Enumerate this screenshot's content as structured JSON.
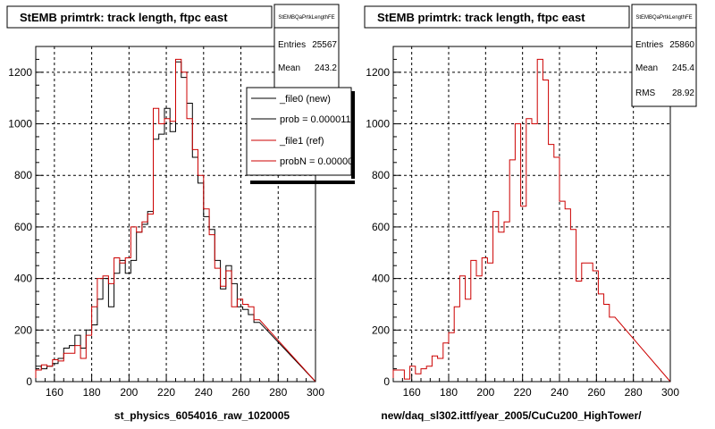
{
  "panels": [
    {
      "title": "StEMB primtrk: track length, ftpc east",
      "stats": {
        "name": "StEMBQaPrtkLengthFE",
        "rows": [
          {
            "label": "Entries",
            "value": "25567"
          },
          {
            "label": "Mean",
            "value": "243.2"
          }
        ]
      },
      "legend": [
        {
          "label": "_file0 (new)",
          "color": "#000000"
        },
        {
          "label": "prob = 0.000011",
          "color": "#000000"
        },
        {
          "label": "_file1 (ref)",
          "color": "#cc0000"
        },
        {
          "label": "probN = 0.00000",
          "color": "#cc0000"
        }
      ],
      "xlabel": "st_physics_6054016_raw_1020005"
    },
    {
      "title": "StEMB primtrk: track length, ftpc east",
      "stats": {
        "name": "StEMBQaPrtkLengthFE",
        "rows": [
          {
            "label": "Entries",
            "value": "25860"
          },
          {
            "label": "Mean",
            "value": "245.4"
          },
          {
            "label": "RMS",
            "value": "28.92"
          }
        ]
      },
      "legend": [],
      "xlabel": "new/daq_sl302.ittf/year_2005/CuCu200_HighTower/"
    }
  ],
  "chart_data": [
    {
      "type": "line",
      "step": true,
      "title": "StEMB primtrk: track length, ftpc east",
      "xlabel": "st_physics_6054016_raw_1020005",
      "ylabel": "",
      "xlim": [
        150,
        300
      ],
      "ylim": [
        0,
        1300
      ],
      "xticks": [
        160,
        180,
        200,
        220,
        240,
        260,
        280,
        300
      ],
      "yticks": [
        0,
        200,
        400,
        600,
        800,
        1000,
        1200
      ],
      "grid": true,
      "bin_start": 150,
      "bin_width": 3,
      "series": [
        {
          "name": "_file0 (new)",
          "color": "#000000",
          "values": [
            60,
            50,
            60,
            70,
            90,
            130,
            140,
            180,
            130,
            200,
            220,
            320,
            400,
            290,
            420,
            470,
            420,
            470,
            580,
            610,
            660,
            940,
            960,
            1060,
            970,
            1240,
            1180,
            1080,
            870,
            770,
            640,
            590,
            470,
            360,
            450,
            380,
            290,
            280,
            260,
            230
          ]
        },
        {
          "name": "_file1 (ref)",
          "color": "#cc0000",
          "values": [
            45,
            65,
            60,
            85,
            80,
            110,
            110,
            140,
            90,
            180,
            290,
            400,
            410,
            380,
            480,
            460,
            480,
            600,
            580,
            620,
            650,
            1060,
            1000,
            1020,
            1010,
            1250,
            1200,
            1020,
            900,
            800,
            670,
            570,
            440,
            370,
            430,
            290,
            320,
            300,
            290,
            240
          ]
        }
      ]
    },
    {
      "type": "line",
      "step": true,
      "title": "StEMB primtrk: track length, ftpc east",
      "xlabel": "new/daq_sl302.ittf/year_2005/CuCu200_HighTower/",
      "ylabel": "",
      "xlim": [
        150,
        300
      ],
      "ylim": [
        0,
        1300
      ],
      "xticks": [
        160,
        180,
        200,
        220,
        240,
        260,
        280,
        300
      ],
      "yticks": [
        0,
        200,
        400,
        600,
        800,
        1000,
        1200
      ],
      "grid": true,
      "bin_start": 150,
      "bin_width": 3,
      "series": [
        {
          "name": "",
          "color": "#cc0000",
          "values": [
            45,
            45,
            10,
            60,
            30,
            50,
            60,
            100,
            90,
            150,
            190,
            290,
            410,
            320,
            470,
            410,
            480,
            460,
            660,
            580,
            620,
            860,
            1000,
            680,
            1020,
            1000,
            1250,
            1170,
            920,
            870,
            700,
            670,
            590,
            390,
            460,
            460,
            430,
            340,
            300,
            250
          ]
        }
      ]
    }
  ]
}
